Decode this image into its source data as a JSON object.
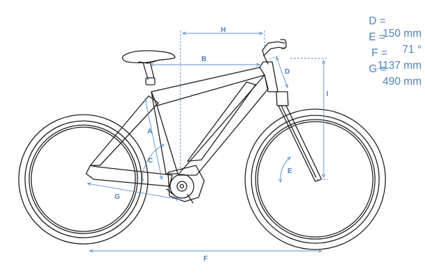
{
  "colors": {
    "line": "#1e1e1e",
    "dimension": "#5a8fc4",
    "text": "#4f84b8",
    "background": "#ffffff"
  },
  "specs": [
    {
      "key": "D =",
      "value": "150 mm"
    },
    {
      "key": "E =",
      "value": "71 °"
    },
    {
      "key": "F = ",
      "value": "1137 mm"
    },
    {
      "key": "G =",
      "value": "490 mm"
    }
  ],
  "dimension_labels": {
    "A": "A",
    "B": "B",
    "C": "C",
    "D": "D",
    "E": "E",
    "F": "F",
    "G": "G",
    "H": "H",
    "I": "I"
  }
}
